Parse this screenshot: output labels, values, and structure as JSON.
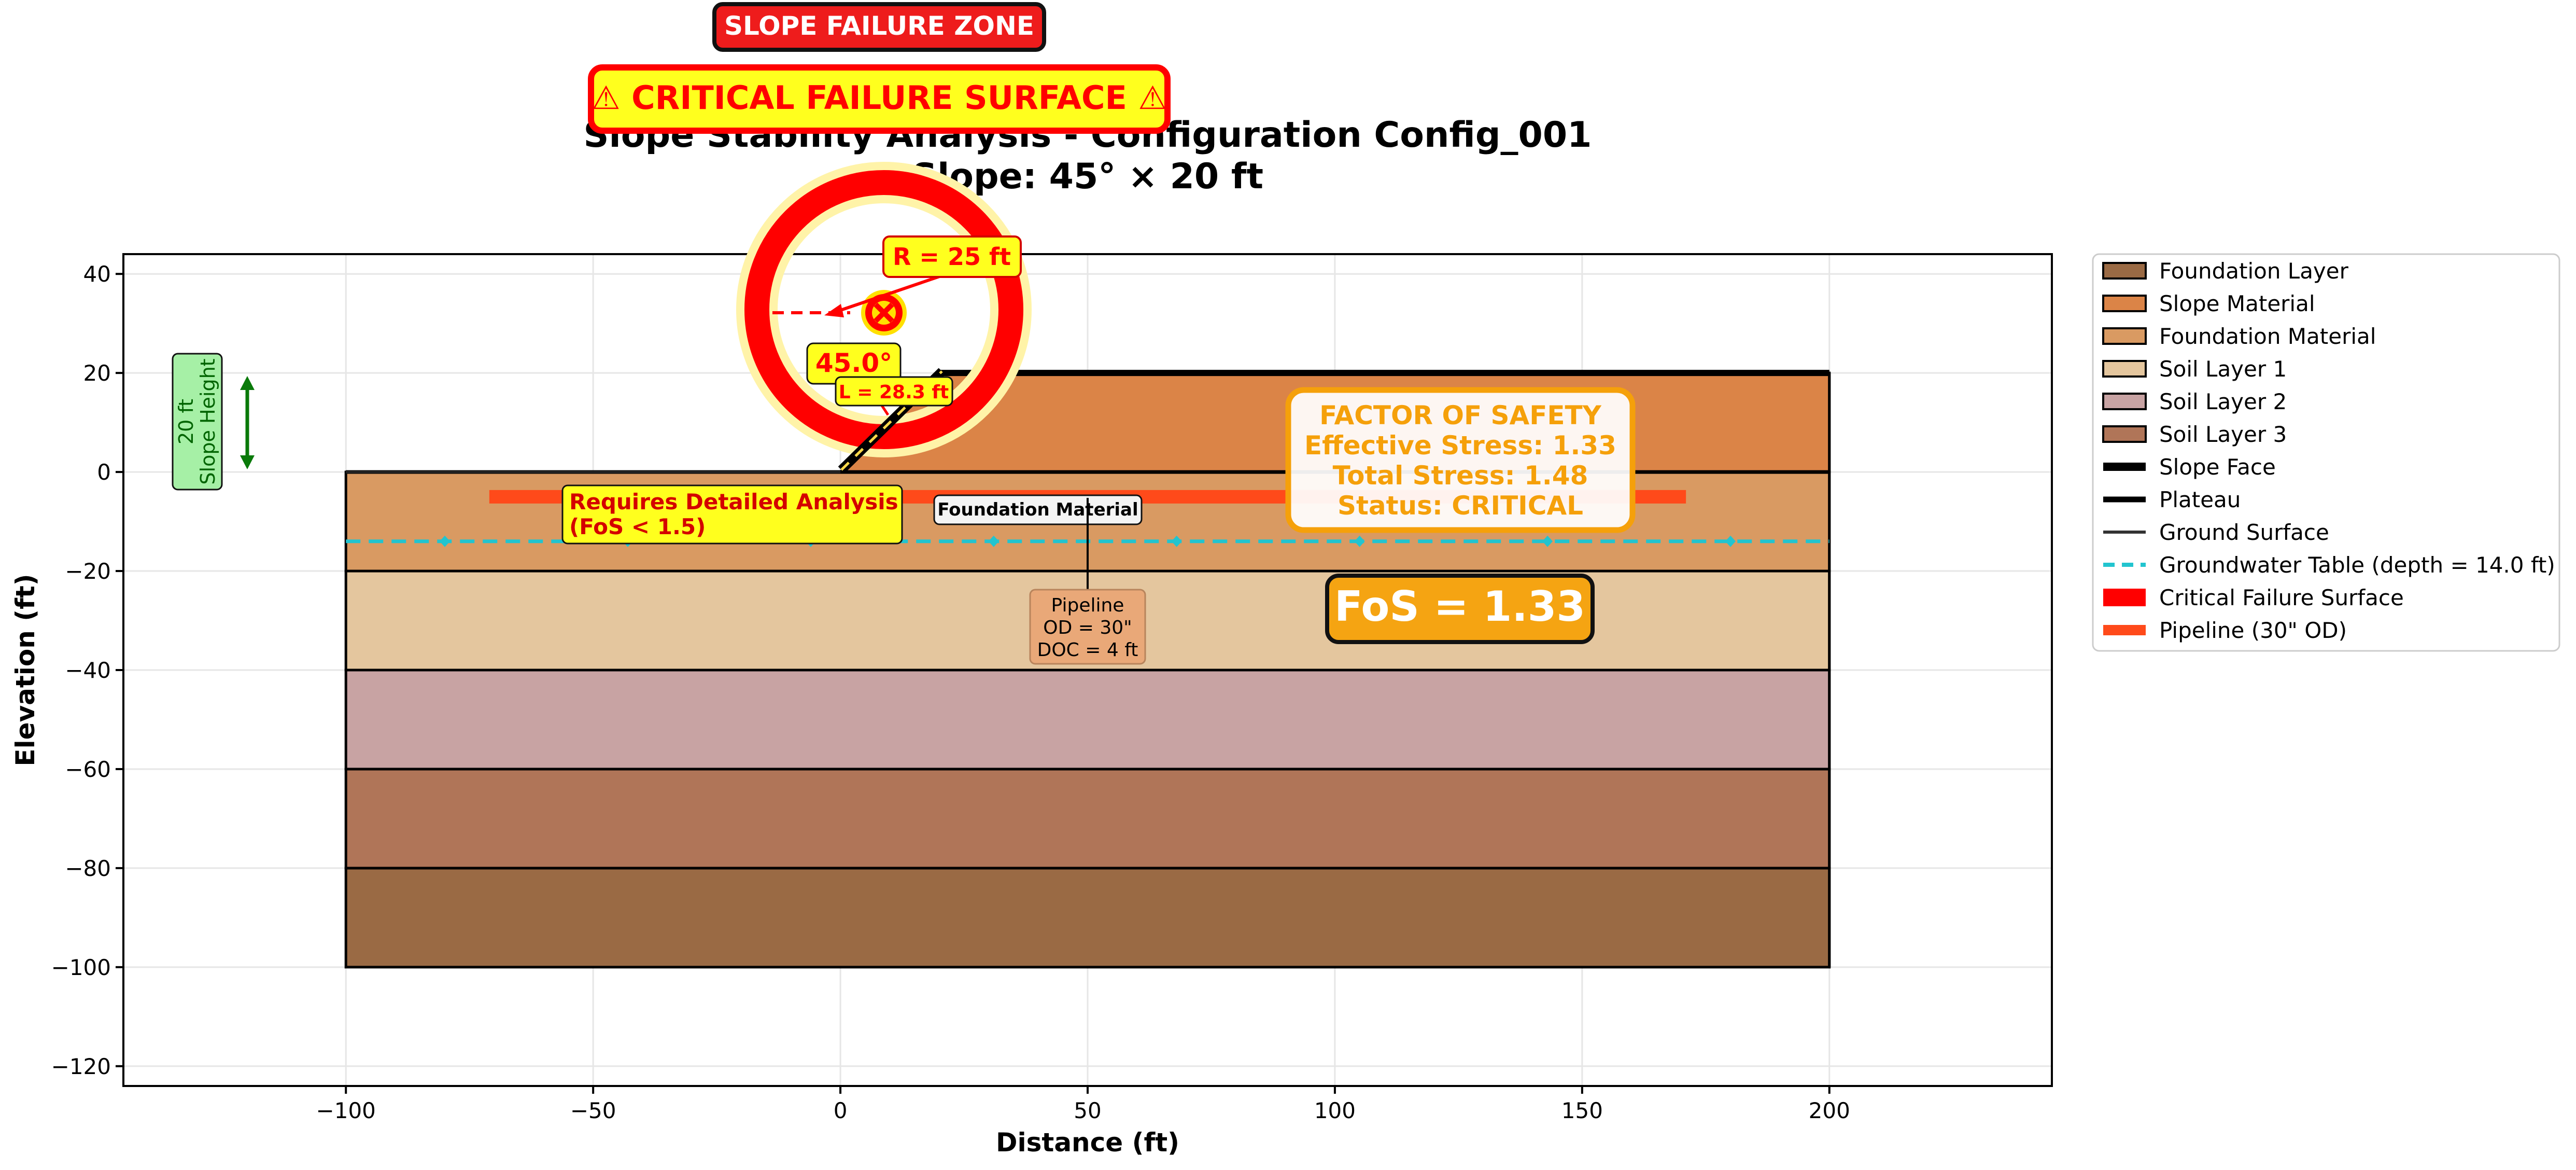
{
  "chart_data": {
    "type": "area",
    "title_line1": "Slope Stability Analysis - Configuration Config_001",
    "title_line2": "Slope: 45° × 20 ft",
    "xlabel": "Distance (ft)",
    "ylabel": "Elevation (ft)",
    "xlim": [
      -145,
      245
    ],
    "ylim": [
      -124,
      44
    ],
    "x_ticks": [
      -100,
      -50,
      0,
      50,
      100,
      150,
      200
    ],
    "y_ticks": [
      40,
      20,
      0,
      -20,
      -40,
      -60,
      -80,
      -100,
      -120
    ],
    "grid": true,
    "legend_position": "outside-right",
    "layers": [
      {
        "name": "Foundation Layer",
        "x_min": -100,
        "x_max": 200,
        "top": -80,
        "bottom": -100,
        "color": "#9a6a44"
      },
      {
        "name": "Soil Layer 3",
        "x_min": -100,
        "x_max": 200,
        "top": -60,
        "bottom": -80,
        "color": "#b07558"
      },
      {
        "name": "Soil Layer 2",
        "x_min": -100,
        "x_max": 200,
        "top": -40,
        "bottom": -60,
        "color": "#c8a3a3"
      },
      {
        "name": "Soil Layer 1",
        "x_min": -100,
        "x_max": 200,
        "top": -20,
        "bottom": -40,
        "color": "#e4c69e"
      },
      {
        "name": "Foundation Material",
        "x_min": -100,
        "x_max": 200,
        "top": 0,
        "bottom": -20,
        "color": "#d99a62"
      }
    ],
    "slope_material": {
      "name": "Slope Material",
      "polygon": [
        [
          0,
          0
        ],
        [
          20,
          20
        ],
        [
          200,
          20
        ],
        [
          200,
          0
        ]
      ],
      "color": "#db8447"
    },
    "slope_face": {
      "name": "Slope Face",
      "points": [
        [
          0,
          0
        ],
        [
          20,
          20
        ]
      ]
    },
    "plateau": {
      "name": "Plateau",
      "points": [
        [
          20,
          20
        ],
        [
          200,
          20
        ]
      ]
    },
    "ground_surface": {
      "name": "Ground Surface",
      "points": [
        [
          -100,
          0
        ],
        [
          0,
          0
        ]
      ]
    },
    "groundwater": {
      "name": "Groundwater Table (depth = 14.0 ft)",
      "elevation": -14,
      "x_range": [
        -100,
        200
      ],
      "marker_x": [
        -80,
        -43,
        -6,
        31,
        68,
        105,
        143,
        180
      ],
      "color": "#22c4cf"
    },
    "pipeline": {
      "name": "Pipeline (30\" OD)",
      "elevation": -5,
      "x_range": [
        -71,
        171
      ],
      "color": "#ff4a1a"
    },
    "critical_failure_surface": {
      "name": "Critical Failure Surface",
      "center": [
        8,
        32
      ],
      "radius_ft": 25,
      "color": "#ff0000"
    },
    "slope_height_ft": 20,
    "slope_angle_deg": 45.0,
    "factor_of_safety": {
      "effective": 1.33,
      "total": 1.48,
      "status": "CRITICAL"
    }
  },
  "annotations": {
    "failure_zone_banner": "SLOPE FAILURE ZONE",
    "critical_banner": "⚠ CRITICAL FAILURE SURFACE ⚠",
    "radius_label": "R = 25 ft",
    "angle_label": "45.0°",
    "length_label": "L = 28.3 ft",
    "slope_height_line1": "20 ft",
    "slope_height_line2": "Slope Height",
    "detailed_line1": "Requires Detailed Analysis",
    "detailed_line2": "(FoS < 1.5)",
    "foundation_material_label": "Foundation Material",
    "pipeline_line1": "Pipeline",
    "pipeline_line2": "OD = 30\"",
    "pipeline_line3": "DOC = 4 ft",
    "fos_heading": "FACTOR OF SAFETY",
    "fos_effective": "Effective Stress: 1.33",
    "fos_total": "Total Stress: 1.48",
    "fos_status": "Status: CRITICAL",
    "fos_big": "FoS = 1.33"
  },
  "legend": [
    {
      "label": "Foundation Layer",
      "kind": "patch",
      "color": "#9a6a44"
    },
    {
      "label": "Slope Material",
      "kind": "patch",
      "color": "#db8447"
    },
    {
      "label": "Foundation Material",
      "kind": "patch",
      "color": "#d99a62"
    },
    {
      "label": "Soil Layer 1",
      "kind": "patch",
      "color": "#e4c69e"
    },
    {
      "label": "Soil Layer 2",
      "kind": "patch",
      "color": "#c8a3a3"
    },
    {
      "label": "Soil Layer 3",
      "kind": "patch",
      "color": "#b07558"
    },
    {
      "label": "Slope Face",
      "kind": "line",
      "color": "#000000",
      "style": "thick"
    },
    {
      "label": "Plateau",
      "kind": "line",
      "color": "#000000",
      "style": "medium"
    },
    {
      "label": "Ground Surface",
      "kind": "line",
      "color": "#333333",
      "style": "thin"
    },
    {
      "label": "Groundwater Table (depth = 14.0 ft)",
      "kind": "line",
      "color": "#22c4cf",
      "style": "dashed"
    },
    {
      "label": "Critical Failure Surface",
      "kind": "line",
      "color": "#ff0000",
      "style": "bold"
    },
    {
      "label": "Pipeline (30\" OD)",
      "kind": "line",
      "color": "#ff4a1a",
      "style": "medium-thick"
    }
  ]
}
